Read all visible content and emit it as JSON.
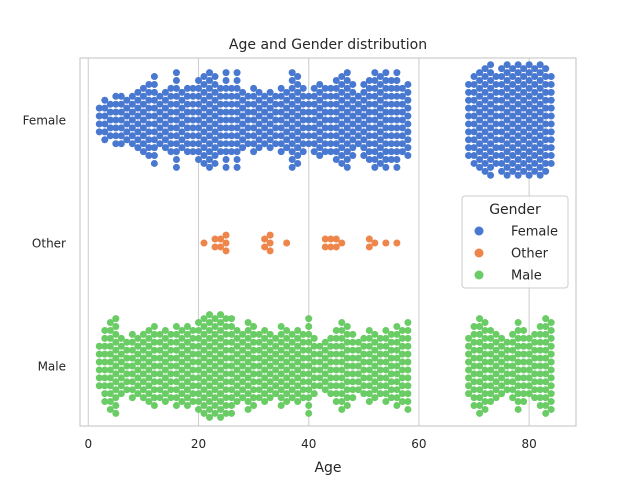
{
  "chart_data": {
    "type": "scatter",
    "subtype": "swarm",
    "title": "Age and Gender distribution",
    "xlabel": "Age",
    "ylabel": "",
    "xlim": [
      -1.5,
      88.5
    ],
    "xticks": [
      0,
      20,
      40,
      60,
      80
    ],
    "xtick_labels": [
      "0",
      "20",
      "40",
      "60",
      "80"
    ],
    "categories": [
      "Female",
      "Other",
      "Male"
    ],
    "grid": "vertical",
    "legend": {
      "title": "Gender",
      "placement": "center-right",
      "entries": [
        "Female",
        "Other",
        "Male"
      ]
    },
    "colors": {
      "Female": "#4878d0",
      "Other": "#ee854a",
      "Male": "#6acc64",
      "grid": "#d0d0d0",
      "frame": "#cccccc"
    },
    "series": [
      {
        "name": "Female",
        "values": [
          {
            "age": 2,
            "count": 4
          },
          {
            "age": 3,
            "count": 6
          },
          {
            "age": 4,
            "count": 5
          },
          {
            "age": 5,
            "count": 7
          },
          {
            "age": 6,
            "count": 7
          },
          {
            "age": 7,
            "count": 6
          },
          {
            "age": 8,
            "count": 7
          },
          {
            "age": 9,
            "count": 8
          },
          {
            "age": 10,
            "count": 9
          },
          {
            "age": 11,
            "count": 10
          },
          {
            "age": 12,
            "count": 12
          },
          {
            "age": 13,
            "count": 7
          },
          {
            "age": 14,
            "count": 8
          },
          {
            "age": 15,
            "count": 9
          },
          {
            "age": 16,
            "count": 13
          },
          {
            "age": 17,
            "count": 8
          },
          {
            "age": 18,
            "count": 9
          },
          {
            "age": 19,
            "count": 9
          },
          {
            "age": 20,
            "count": 11
          },
          {
            "age": 21,
            "count": 12
          },
          {
            "age": 22,
            "count": 13
          },
          {
            "age": 23,
            "count": 12
          },
          {
            "age": 24,
            "count": 9
          },
          {
            "age": 25,
            "count": 13
          },
          {
            "age": 26,
            "count": 9
          },
          {
            "age": 27,
            "count": 13
          },
          {
            "age": 28,
            "count": 8
          },
          {
            "age": 29,
            "count": 7
          },
          {
            "age": 30,
            "count": 9
          },
          {
            "age": 31,
            "count": 8
          },
          {
            "age": 32,
            "count": 7
          },
          {
            "age": 33,
            "count": 8
          },
          {
            "age": 34,
            "count": 7
          },
          {
            "age": 35,
            "count": 9
          },
          {
            "age": 36,
            "count": 8
          },
          {
            "age": 37,
            "count": 13
          },
          {
            "age": 38,
            "count": 12
          },
          {
            "age": 39,
            "count": 9
          },
          {
            "age": 40,
            "count": 7
          },
          {
            "age": 41,
            "count": 9
          },
          {
            "age": 42,
            "count": 10
          },
          {
            "age": 43,
            "count": 9
          },
          {
            "age": 44,
            "count": 9
          },
          {
            "age": 45,
            "count": 11
          },
          {
            "age": 46,
            "count": 12
          },
          {
            "age": 47,
            "count": 13
          },
          {
            "age": 48,
            "count": 10
          },
          {
            "age": 49,
            "count": 7
          },
          {
            "age": 50,
            "count": 10
          },
          {
            "age": 51,
            "count": 11
          },
          {
            "age": 52,
            "count": 13
          },
          {
            "age": 53,
            "count": 12
          },
          {
            "age": 54,
            "count": 13
          },
          {
            "age": 55,
            "count": 11
          },
          {
            "age": 56,
            "count": 13
          },
          {
            "age": 57,
            "count": 9
          },
          {
            "age": 58,
            "count": 10
          },
          {
            "age": 69,
            "count": 10
          },
          {
            "age": 70,
            "count": 12
          },
          {
            "age": 71,
            "count": 13
          },
          {
            "age": 72,
            "count": 14
          },
          {
            "age": 73,
            "count": 15
          },
          {
            "age": 74,
            "count": 12
          },
          {
            "age": 75,
            "count": 14
          },
          {
            "age": 76,
            "count": 15
          },
          {
            "age": 77,
            "count": 14
          },
          {
            "age": 78,
            "count": 15
          },
          {
            "age": 79,
            "count": 14
          },
          {
            "age": 80,
            "count": 15
          },
          {
            "age": 81,
            "count": 14
          },
          {
            "age": 82,
            "count": 15
          },
          {
            "age": 83,
            "count": 14
          },
          {
            "age": 84,
            "count": 12
          }
        ]
      },
      {
        "name": "Other",
        "values": [
          {
            "age": 21,
            "count": 1
          },
          {
            "age": 23,
            "count": 2
          },
          {
            "age": 24,
            "count": 2
          },
          {
            "age": 25,
            "count": 3
          },
          {
            "age": 32,
            "count": 2
          },
          {
            "age": 33,
            "count": 3
          },
          {
            "age": 36,
            "count": 1
          },
          {
            "age": 43,
            "count": 2
          },
          {
            "age": 44,
            "count": 2
          },
          {
            "age": 45,
            "count": 2
          },
          {
            "age": 46,
            "count": 1
          },
          {
            "age": 51,
            "count": 2
          },
          {
            "age": 52,
            "count": 1
          },
          {
            "age": 54,
            "count": 1
          },
          {
            "age": 56,
            "count": 1
          }
        ]
      },
      {
        "name": "Male",
        "values": [
          {
            "age": 2,
            "count": 6
          },
          {
            "age": 3,
            "count": 10
          },
          {
            "age": 4,
            "count": 12
          },
          {
            "age": 5,
            "count": 13
          },
          {
            "age": 6,
            "count": 8
          },
          {
            "age": 7,
            "count": 7
          },
          {
            "age": 8,
            "count": 9
          },
          {
            "age": 9,
            "count": 8
          },
          {
            "age": 10,
            "count": 9
          },
          {
            "age": 11,
            "count": 10
          },
          {
            "age": 12,
            "count": 11
          },
          {
            "age": 13,
            "count": 9
          },
          {
            "age": 14,
            "count": 10
          },
          {
            "age": 15,
            "count": 9
          },
          {
            "age": 16,
            "count": 11
          },
          {
            "age": 17,
            "count": 10
          },
          {
            "age": 18,
            "count": 11
          },
          {
            "age": 19,
            "count": 10
          },
          {
            "age": 20,
            "count": 12
          },
          {
            "age": 21,
            "count": 13
          },
          {
            "age": 22,
            "count": 14
          },
          {
            "age": 23,
            "count": 13
          },
          {
            "age": 24,
            "count": 14
          },
          {
            "age": 25,
            "count": 13
          },
          {
            "age": 26,
            "count": 13
          },
          {
            "age": 27,
            "count": 10
          },
          {
            "age": 28,
            "count": 9
          },
          {
            "age": 29,
            "count": 12
          },
          {
            "age": 30,
            "count": 11
          },
          {
            "age": 31,
            "count": 9
          },
          {
            "age": 32,
            "count": 10
          },
          {
            "age": 33,
            "count": 9
          },
          {
            "age": 34,
            "count": 8
          },
          {
            "age": 35,
            "count": 11
          },
          {
            "age": 36,
            "count": 10
          },
          {
            "age": 37,
            "count": 9
          },
          {
            "age": 38,
            "count": 10
          },
          {
            "age": 39,
            "count": 9
          },
          {
            "age": 40,
            "count": 13
          },
          {
            "age": 41,
            "count": 8
          },
          {
            "age": 42,
            "count": 6
          },
          {
            "age": 43,
            "count": 7
          },
          {
            "age": 44,
            "count": 8
          },
          {
            "age": 45,
            "count": 10
          },
          {
            "age": 46,
            "count": 12
          },
          {
            "age": 47,
            "count": 11
          },
          {
            "age": 48,
            "count": 9
          },
          {
            "age": 49,
            "count": 7
          },
          {
            "age": 50,
            "count": 8
          },
          {
            "age": 51,
            "count": 10
          },
          {
            "age": 52,
            "count": 9
          },
          {
            "age": 53,
            "count": 8
          },
          {
            "age": 54,
            "count": 10
          },
          {
            "age": 55,
            "count": 9
          },
          {
            "age": 56,
            "count": 11
          },
          {
            "age": 57,
            "count": 10
          },
          {
            "age": 58,
            "count": 12
          },
          {
            "age": 69,
            "count": 8
          },
          {
            "age": 70,
            "count": 11
          },
          {
            "age": 71,
            "count": 13
          },
          {
            "age": 72,
            "count": 12
          },
          {
            "age": 73,
            "count": 10
          },
          {
            "age": 74,
            "count": 9
          },
          {
            "age": 75,
            "count": 8
          },
          {
            "age": 76,
            "count": 7
          },
          {
            "age": 77,
            "count": 9
          },
          {
            "age": 78,
            "count": 12
          },
          {
            "age": 79,
            "count": 10
          },
          {
            "age": 80,
            "count": 8
          },
          {
            "age": 81,
            "count": 9
          },
          {
            "age": 82,
            "count": 11
          },
          {
            "age": 83,
            "count": 13
          },
          {
            "age": 84,
            "count": 12
          }
        ]
      }
    ]
  }
}
